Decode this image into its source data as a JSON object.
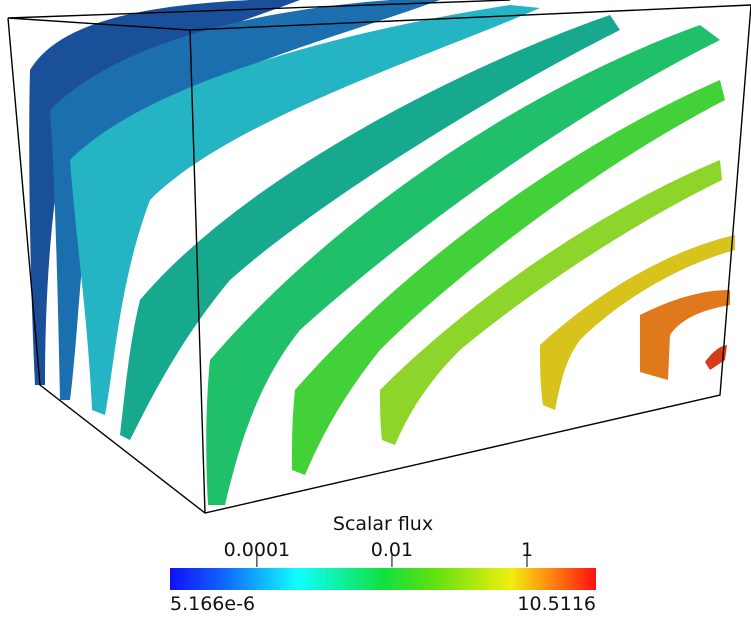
{
  "colorbar": {
    "title": "Scalar flux",
    "log": true,
    "range": [
      {
        "value": 5.166e-06,
        "label": "5.166e-6"
      },
      10.5116
    ],
    "ticks": [
      0.0001,
      0.01,
      1
    ]
  }
}
